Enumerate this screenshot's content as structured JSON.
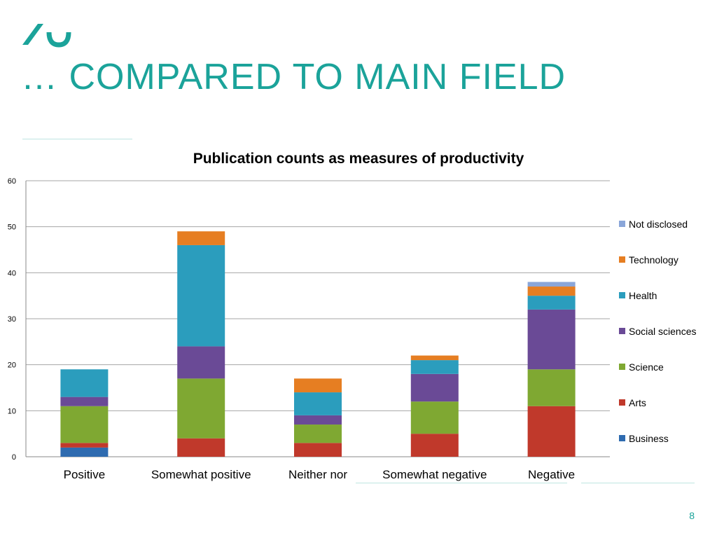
{
  "slide": {
    "title": "… COMPARED TO MAIN FIELD",
    "page_number": "8"
  },
  "colors": {
    "accent": "#1ba39a",
    "rule": "#bfe5e1"
  },
  "chart_data": {
    "type": "bar",
    "stacked": true,
    "title": "Publication counts as measures of productivity",
    "xlabel": "",
    "ylabel": "",
    "ylim": [
      0,
      60
    ],
    "yticks": [
      0,
      10,
      20,
      30,
      40,
      50,
      60
    ],
    "grid": true,
    "legend_position": "right",
    "categories": [
      "Positive",
      "Somewhat positive",
      "Neither nor",
      "Somewhat negative",
      "Negative"
    ],
    "series": [
      {
        "name": "Business",
        "color": "#2e6bb0",
        "values": [
          2,
          0,
          0,
          0,
          0
        ]
      },
      {
        "name": "Arts",
        "color": "#c0392b",
        "values": [
          1,
          4,
          3,
          5,
          11
        ]
      },
      {
        "name": "Science",
        "color": "#7fa832",
        "values": [
          8,
          13,
          4,
          7,
          8
        ]
      },
      {
        "name": "Social sciences",
        "color": "#6a4a96",
        "values": [
          2,
          7,
          2,
          6,
          13
        ]
      },
      {
        "name": "Health",
        "color": "#2b9dbd",
        "values": [
          6,
          22,
          5,
          3,
          3
        ]
      },
      {
        "name": "Technology",
        "color": "#e67e22",
        "values": [
          0,
          3,
          3,
          1,
          2
        ]
      },
      {
        "name": "Not disclosed",
        "color": "#8aa6d9",
        "values": [
          0,
          0,
          0,
          0,
          1
        ]
      }
    ]
  }
}
